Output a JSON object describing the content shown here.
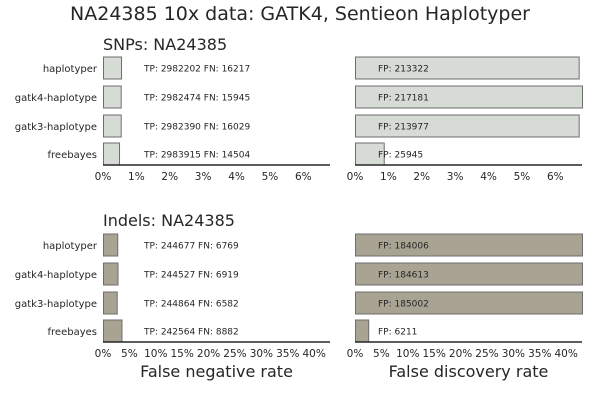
{
  "figure": {
    "title": "NA24385 10x data: GATK4, Sentieon Haplotyper"
  },
  "chart_data": [
    {
      "type": "bar",
      "orientation": "horizontal",
      "panel_title": "SNPs: NA24385",
      "categories": [
        "haplotyper",
        "gatk4-haplotype",
        "gatk3-haplotype",
        "freebayes"
      ],
      "values": [
        0.54,
        0.53,
        0.53,
        0.48
      ],
      "xlabel": "",
      "xlim": [
        0,
        6.8
      ],
      "xticks": [
        "0%",
        "1%",
        "2%",
        "3%",
        "4%",
        "5%",
        "6%"
      ],
      "xtick_values": [
        0,
        1,
        2,
        3,
        4,
        5,
        6
      ],
      "bar_labels": [
        "TP: 2982202 FN: 16217",
        "TP: 2982474 FN: 15945",
        "TP: 2982390 FN: 16029",
        "TP: 2983915 FN: 14504"
      ],
      "color": "#d6dbd6"
    },
    {
      "type": "bar",
      "orientation": "horizontal",
      "panel_title": "",
      "categories": [
        "haplotyper",
        "gatk4-haplotype",
        "gatk3-haplotype",
        "freebayes"
      ],
      "values": [
        6.7,
        6.8,
        6.7,
        0.86
      ],
      "xlabel": "",
      "xlim": [
        0,
        6.8
      ],
      "xticks": [
        "0%",
        "1%",
        "2%",
        "3%",
        "4%",
        "5%",
        "6%"
      ],
      "xtick_values": [
        0,
        1,
        2,
        3,
        4,
        5,
        6
      ],
      "bar_labels": [
        "FP: 213322",
        "FP: 217181",
        "FP: 213977",
        "FP: 25945"
      ],
      "color": "#d6dbd6"
    },
    {
      "type": "bar",
      "orientation": "horizontal",
      "panel_title": "Indels: NA24385",
      "categories": [
        "haplotyper",
        "gatk4-haplotype",
        "gatk3-haplotype",
        "freebayes"
      ],
      "values": [
        2.7,
        2.75,
        2.6,
        3.5
      ],
      "xlabel": "False negative rate",
      "xlim": [
        0,
        43
      ],
      "xticks": [
        "0%",
        "5%",
        "10%",
        "15%",
        "20%",
        "25%",
        "30%",
        "35%",
        "40%"
      ],
      "xtick_values": [
        0,
        5,
        10,
        15,
        20,
        25,
        30,
        35,
        40
      ],
      "bar_labels": [
        "TP: 244677 FN: 6769",
        "TP: 244527 FN: 6919",
        "TP: 244864 FN: 6582",
        "TP: 242564 FN: 8882"
      ],
      "color": "#a8a393"
    },
    {
      "type": "bar",
      "orientation": "horizontal",
      "panel_title": "",
      "categories": [
        "haplotyper",
        "gatk4-haplotype",
        "gatk3-haplotype",
        "freebayes"
      ],
      "values": [
        43,
        43,
        43,
        2.5
      ],
      "xlabel": "False discovery rate",
      "xlim": [
        0,
        43
      ],
      "xticks": [
        "0%",
        "5%",
        "10%",
        "15%",
        "20%",
        "25%",
        "30%",
        "35%",
        "40%"
      ],
      "xtick_values": [
        0,
        5,
        10,
        15,
        20,
        25,
        30,
        35,
        40
      ],
      "bar_labels": [
        "FP: 184006",
        "FP: 184613",
        "FP: 185002",
        "FP: 6211"
      ],
      "color": "#a8a393"
    }
  ]
}
